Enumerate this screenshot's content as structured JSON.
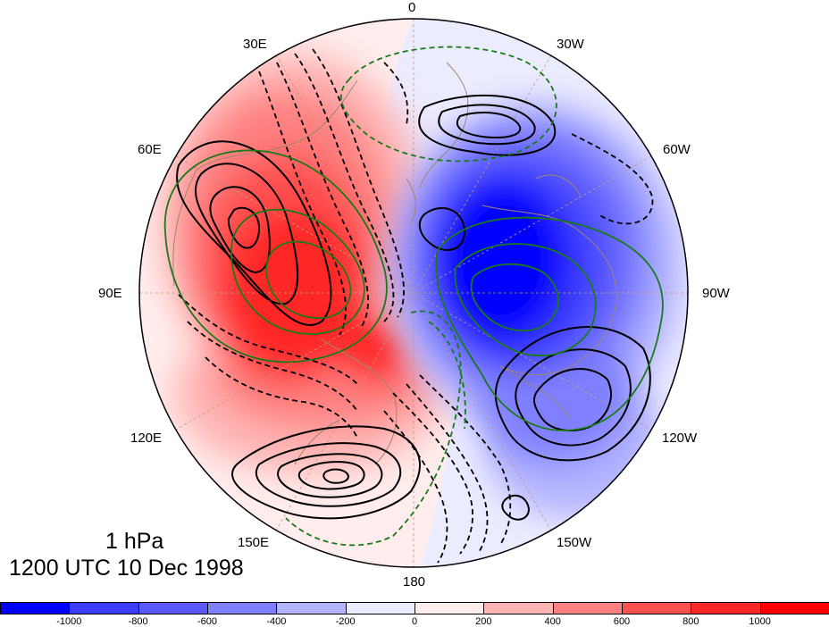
{
  "map": {
    "projection": "polar-stereographic-north",
    "longitude_labels": [
      {
        "id": "lon-0",
        "text": "0"
      },
      {
        "id": "lon-30w",
        "text": "30W"
      },
      {
        "id": "lon-60w",
        "text": "60W"
      },
      {
        "id": "lon-90w",
        "text": "90W"
      },
      {
        "id": "lon-120w",
        "text": "120W"
      },
      {
        "id": "lon-150w",
        "text": "150W"
      },
      {
        "id": "lon-180",
        "text": "180"
      },
      {
        "id": "lon-150e",
        "text": "150E"
      },
      {
        "id": "lon-120e",
        "text": "120E"
      },
      {
        "id": "lon-90e",
        "text": "90E"
      },
      {
        "id": "lon-60e",
        "text": "60E"
      },
      {
        "id": "lon-30e",
        "text": "30E"
      }
    ],
    "contour_colors": {
      "positive": "#000000",
      "negative": "#000000",
      "secondary_field": "#1a7a1a"
    },
    "shading_colors": {
      "positive": "#ff0000",
      "negative": "#0000ff"
    }
  },
  "caption": {
    "level": "1 hPa",
    "datetime": "1200 UTC 10 Dec 1998"
  },
  "colorbar": {
    "tick_labels": [
      "-1000",
      "-800",
      "-600",
      "-400",
      "-200",
      "0",
      "200",
      "400",
      "600",
      "800",
      "1000"
    ],
    "colors": [
      "#0000ff",
      "#3c3cff",
      "#5a5aff",
      "#8080ff",
      "#b4b4ff",
      "#ececff",
      "#ffecec",
      "#ffb4b4",
      "#ff8080",
      "#ff5050",
      "#ff2828",
      "#ff0000"
    ]
  }
}
